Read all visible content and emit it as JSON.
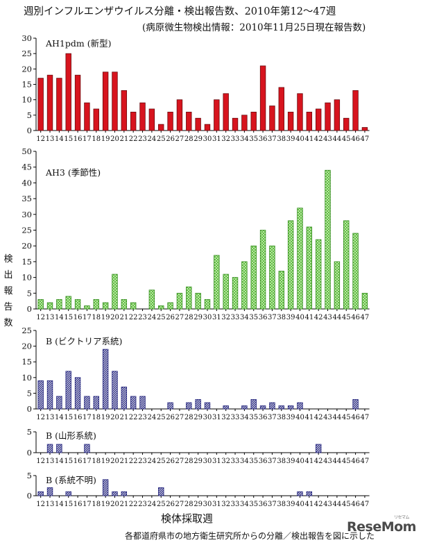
{
  "title": "週別インフルエンザウイルス分離・検出報告数、2010年第12〜47週",
  "subtitle": "(病原微生物検出情報：2010年11月25日現在報告数)",
  "ylabel": "検出報告数",
  "xlabel": "検体採取週",
  "footnote": "各都道府県市の地方衛生研究所からの分離／検出報告を図に示した",
  "logo": {
    "text": "ReseMom",
    "sub": "リセマム"
  },
  "colors": {
    "ah1": "#d7141e",
    "ah3": "#7fd65f",
    "b": "#1e1f7a",
    "axis": "#000000"
  },
  "chart_data": [
    {
      "type": "bar",
      "title": "AH1pdm (新型)",
      "x": [
        12,
        13,
        14,
        15,
        16,
        17,
        18,
        19,
        20,
        21,
        22,
        23,
        24,
        25,
        26,
        27,
        28,
        29,
        30,
        31,
        32,
        33,
        34,
        35,
        36,
        37,
        38,
        39,
        40,
        41,
        42,
        43,
        44,
        45,
        46,
        47
      ],
      "values": [
        17,
        18,
        17,
        25,
        18,
        9,
        7,
        19,
        19,
        13,
        6,
        9,
        7,
        2,
        6,
        10,
        6,
        4,
        2,
        10,
        12,
        4,
        5,
        6,
        21,
        8,
        14,
        6,
        12,
        6,
        7,
        9,
        10,
        4,
        13,
        1
      ],
      "ylim": [
        0,
        30
      ],
      "yticks": [
        0,
        5,
        10,
        15,
        20,
        25,
        30
      ],
      "color_key": "ah1",
      "pattern": "solid"
    },
    {
      "type": "bar",
      "title": "AH3 (季節性)",
      "x": [
        12,
        13,
        14,
        15,
        16,
        17,
        18,
        19,
        20,
        21,
        22,
        23,
        24,
        25,
        26,
        27,
        28,
        29,
        30,
        31,
        32,
        33,
        34,
        35,
        36,
        37,
        38,
        39,
        40,
        41,
        42,
        43,
        44,
        45,
        46,
        47
      ],
      "values": [
        3,
        2,
        3,
        4,
        3,
        1,
        3,
        2,
        11,
        3,
        2,
        0,
        6,
        1,
        2,
        5,
        7,
        5,
        3,
        17,
        11,
        10,
        15,
        20,
        25,
        20,
        12,
        28,
        32,
        26,
        22,
        44,
        15,
        28,
        24,
        5
      ],
      "ylim": [
        0,
        50
      ],
      "yticks": [
        0,
        5,
        10,
        15,
        20,
        25,
        30,
        35,
        40,
        45,
        50
      ],
      "color_key": "ah3",
      "pattern": "crosshatch"
    },
    {
      "type": "bar",
      "title": "B (ビクトリア系統)",
      "x": [
        12,
        13,
        14,
        15,
        16,
        17,
        18,
        19,
        20,
        21,
        22,
        23,
        24,
        25,
        26,
        27,
        28,
        29,
        30,
        31,
        32,
        33,
        34,
        35,
        36,
        37,
        38,
        39,
        40,
        41,
        42,
        43,
        44,
        45,
        46,
        47
      ],
      "values": [
        9,
        9,
        4,
        12,
        10,
        4,
        4,
        19,
        12,
        7,
        4,
        4,
        0,
        0,
        2,
        0,
        2,
        3,
        2,
        0,
        1,
        0,
        1,
        3,
        1,
        2,
        1,
        1,
        2,
        0,
        0,
        0,
        0,
        0,
        3,
        0
      ],
      "ylim": [
        0,
        25
      ],
      "yticks": [
        0,
        5,
        10,
        15,
        20,
        25
      ],
      "color_key": "b",
      "pattern": "diagonal"
    },
    {
      "type": "bar",
      "title": "B (山形系統)",
      "x": [
        12,
        13,
        14,
        15,
        16,
        17,
        18,
        19,
        20,
        21,
        22,
        23,
        24,
        25,
        26,
        27,
        28,
        29,
        30,
        31,
        32,
        33,
        34,
        35,
        36,
        37,
        38,
        39,
        40,
        41,
        42,
        43,
        44,
        45,
        46,
        47
      ],
      "values": [
        0,
        2,
        2,
        0,
        0,
        2,
        0,
        0,
        0,
        0,
        0,
        0,
        0,
        0,
        0,
        0,
        0,
        0,
        0,
        0,
        0,
        0,
        0,
        0,
        0,
        0,
        0,
        0,
        0,
        0,
        2,
        0,
        0,
        0,
        0,
        0
      ],
      "ylim": [
        0,
        5
      ],
      "yticks": [
        0,
        5
      ],
      "color_key": "b",
      "pattern": "diagonal"
    },
    {
      "type": "bar",
      "title": "B (系統不明)",
      "x": [
        12,
        13,
        14,
        15,
        16,
        17,
        18,
        19,
        20,
        21,
        22,
        23,
        24,
        25,
        26,
        27,
        28,
        29,
        30,
        31,
        32,
        33,
        34,
        35,
        36,
        37,
        38,
        39,
        40,
        41,
        42,
        43,
        44,
        45,
        46,
        47
      ],
      "values": [
        1,
        2,
        0,
        1,
        0,
        0,
        0,
        4,
        1,
        1,
        0,
        0,
        0,
        2,
        0,
        0,
        0,
        0,
        0,
        0,
        0,
        0,
        0,
        0,
        0,
        0,
        0,
        0,
        1,
        1,
        0,
        0,
        0,
        0,
        0,
        0
      ],
      "ylim": [
        0,
        5
      ],
      "yticks": [
        0,
        5
      ],
      "color_key": "b",
      "pattern": "diagonal"
    }
  ]
}
